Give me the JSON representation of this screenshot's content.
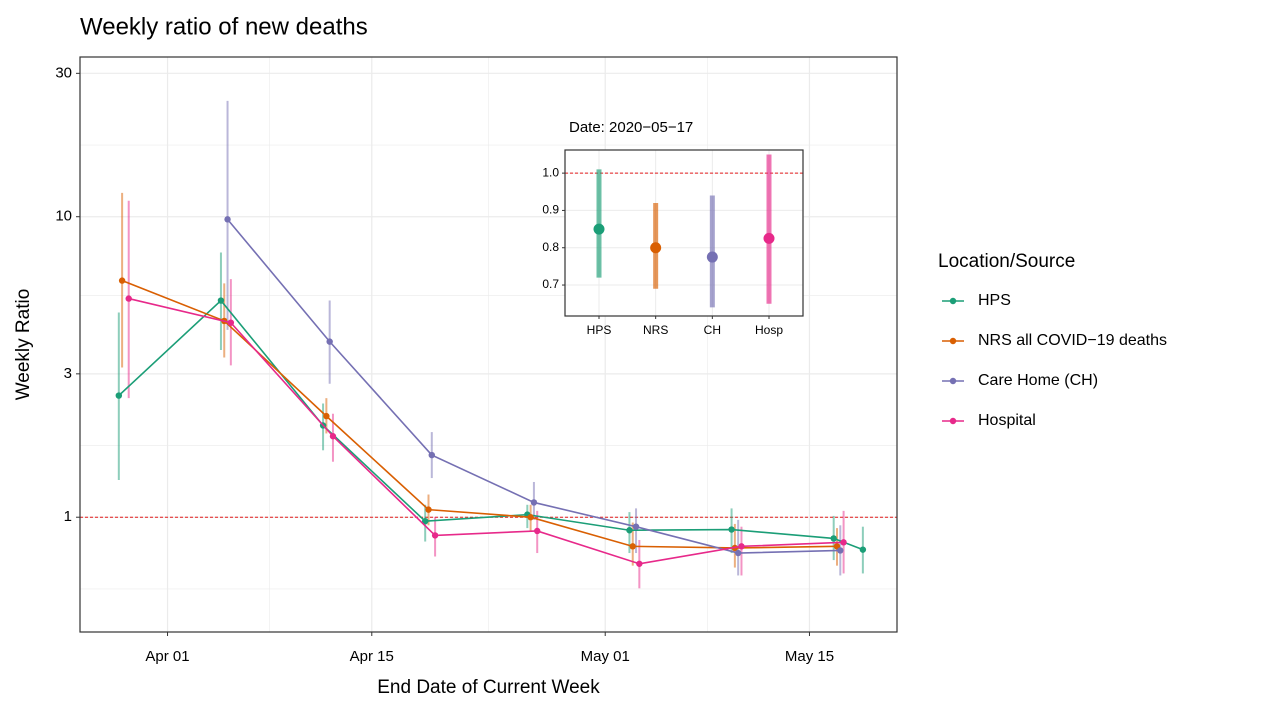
{
  "chart_data": [
    {
      "type": "line",
      "title": "Weekly ratio of new deaths",
      "x_label": "End Date of Current Week",
      "y_label": "Weekly Ratio",
      "legend_title": "Location/Source",
      "legend": "right",
      "log_y": true,
      "grid": true,
      "hline": 1,
      "xlim": [
        "2020-03-26",
        "2020-05-21"
      ],
      "xticks": [
        {
          "value": "2020-04-01",
          "label": "Apr 01"
        },
        {
          "value": "2020-04-15",
          "label": "Apr 15"
        },
        {
          "value": "2020-05-01",
          "label": "May 01"
        },
        {
          "value": "2020-05-15",
          "label": "May 15"
        }
      ],
      "ylim": [
        0.415,
        34
      ],
      "yticks": [
        1,
        3,
        10,
        30
      ],
      "series": [
        {
          "name": "HPS",
          "color": "#1b9e77",
          "x": [
            "2020-03-29",
            "2020-04-05",
            "2020-04-12",
            "2020-04-19",
            "2020-04-26",
            "2020-05-03",
            "2020-05-10",
            "2020-05-17",
            "2020-05-19"
          ],
          "values": [
            2.54,
            5.26,
            2.02,
            0.97,
            1.02,
            0.905,
            0.91,
            0.85,
            0.78
          ],
          "lower": [
            1.33,
            3.6,
            1.67,
            0.83,
            0.92,
            0.76,
            0.76,
            0.72,
            0.65
          ],
          "upper": [
            4.8,
            7.6,
            2.39,
            1.1,
            1.1,
            1.04,
            1.07,
            1.01,
            0.93
          ]
        },
        {
          "name": "NRS all COVID−19 deaths",
          "color": "#d95f02",
          "x": [
            "2020-03-29",
            "2020-04-05",
            "2020-04-12",
            "2020-04-19",
            "2020-04-26",
            "2020-05-03",
            "2020-05-10",
            "2020-05-17"
          ],
          "values": [
            6.13,
            4.5,
            2.17,
            1.06,
            1.0,
            0.8,
            0.79,
            0.8
          ],
          "lower": [
            3.15,
            3.4,
            1.9,
            0.94,
            0.9,
            0.69,
            0.68,
            0.69
          ],
          "upper": [
            12.0,
            6.0,
            2.49,
            1.19,
            1.1,
            0.96,
            0.95,
            0.92
          ]
        },
        {
          "name": "Care Home (CH)",
          "color": "#7570b3",
          "x": [
            "2020-04-05",
            "2020-04-12",
            "2020-04-19",
            "2020-04-26",
            "2020-05-03",
            "2020-05-10",
            "2020-05-17"
          ],
          "values": [
            9.8,
            3.84,
            1.61,
            1.12,
            0.93,
            0.76,
            0.775
          ],
          "lower": [
            4.2,
            2.78,
            1.35,
            0.98,
            0.76,
            0.64,
            0.64
          ],
          "upper": [
            24.3,
            5.26,
            1.92,
            1.31,
            1.07,
            0.98,
            0.94
          ]
        },
        {
          "name": "Hospital",
          "color": "#e7298a",
          "x": [
            "2020-03-29",
            "2020-04-05",
            "2020-04-12",
            "2020-04-19",
            "2020-04-26",
            "2020-05-03",
            "2020-05-10",
            "2020-05-17"
          ],
          "values": [
            5.34,
            4.44,
            1.86,
            0.87,
            0.9,
            0.7,
            0.8,
            0.825
          ],
          "lower": [
            2.49,
            3.2,
            1.53,
            0.74,
            0.76,
            0.58,
            0.64,
            0.65
          ],
          "upper": [
            11.3,
            6.2,
            2.21,
            1.0,
            1.05,
            0.84,
            0.93,
            1.05
          ]
        }
      ]
    },
    {
      "type": "pointrange",
      "title": "Date: 2020−05−17",
      "grid": true,
      "hline": 1,
      "categories": [
        "HPS",
        "NRS",
        "CH",
        "Hosp"
      ],
      "values": [
        0.85,
        0.8,
        0.775,
        0.825
      ],
      "lower": [
        0.72,
        0.69,
        0.64,
        0.65
      ],
      "upper": [
        1.01,
        0.92,
        0.94,
        1.05
      ],
      "colors": [
        "#1b9e77",
        "#d95f02",
        "#7570b3",
        "#e7298a"
      ],
      "ylim": [
        0.617,
        1.062
      ],
      "yticks": [
        0.7,
        0.8,
        0.9,
        {
          "value": 1,
          "label": "1.0"
        }
      ]
    }
  ]
}
